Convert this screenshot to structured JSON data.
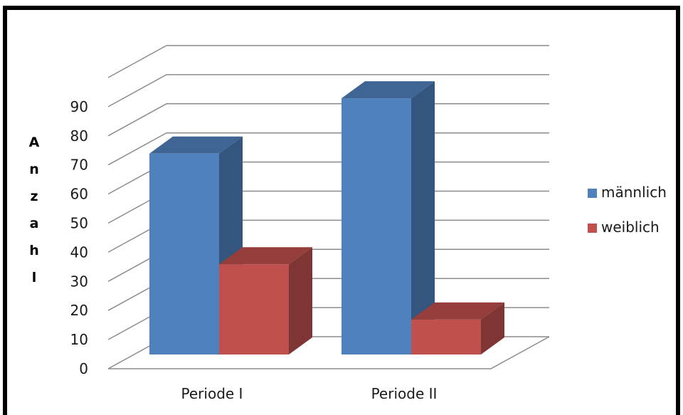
{
  "chart_data": {
    "type": "bar",
    "style": "3d-clustered-column",
    "categories": [
      "Periode I",
      "Periode II"
    ],
    "series": [
      {
        "name": "männlich",
        "values": [
          69,
          88
        ],
        "color": "#4F81BD"
      },
      {
        "name": "weiblich",
        "values": [
          31,
          12
        ],
        "color": "#C0504D"
      }
    ],
    "ylabel": "Anzahl",
    "ylim": [
      0,
      90
    ],
    "yticks": [
      0,
      10,
      20,
      30,
      40,
      50,
      60,
      70,
      80,
      90
    ],
    "grid": true,
    "legend": "right"
  }
}
